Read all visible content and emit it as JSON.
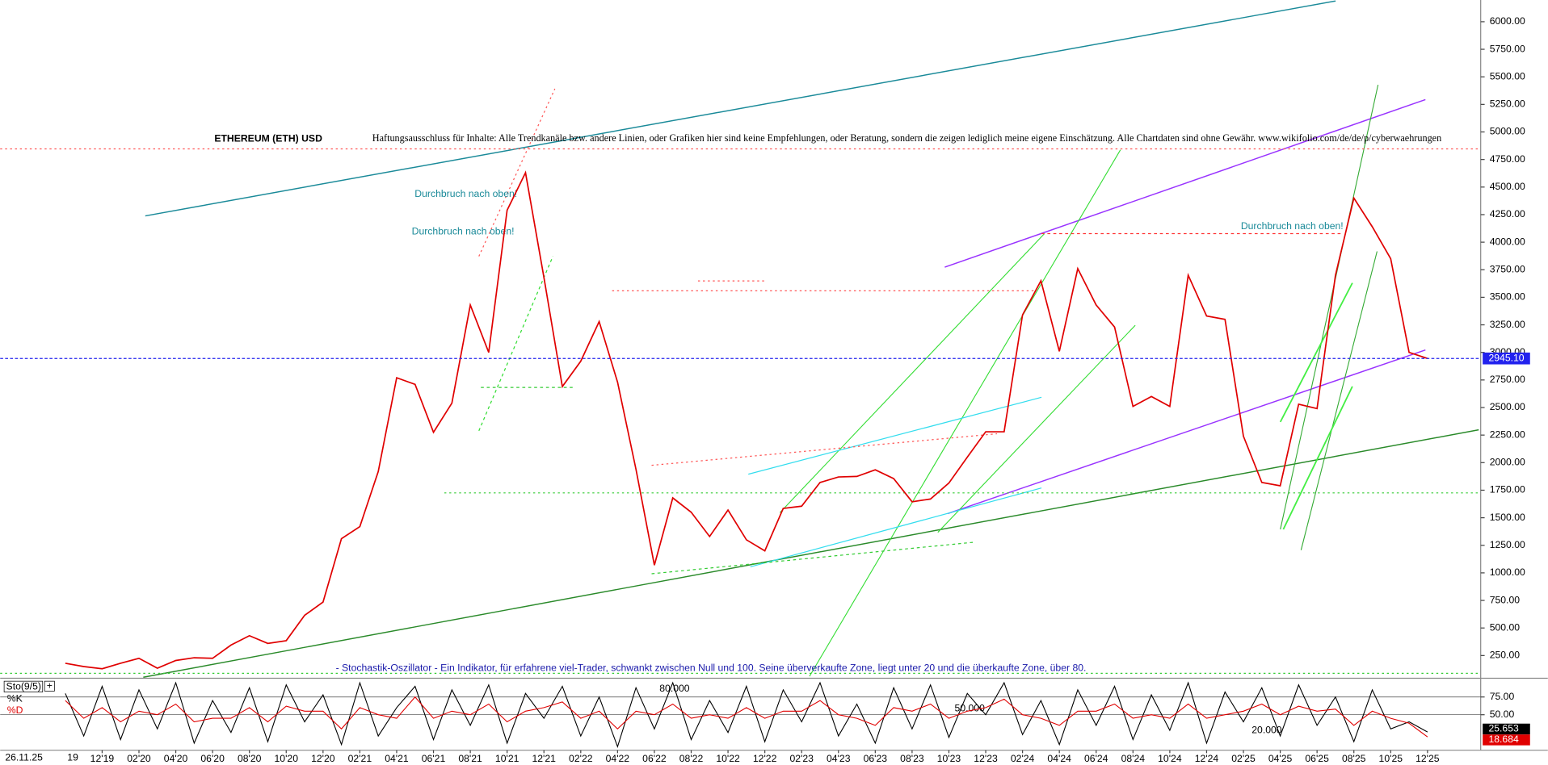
{
  "chart_data": [
    {
      "type": "line",
      "title": "ETHEREUM (ETH) USD",
      "subtitle": "Haftungsausschluss für Inhalte: Alle Trendkanäle bzw. andere Linien, oder Grafiken hier sind keine Empfehlungen, oder Beratung, sondern die zeigen lediglich meine eigene Einschätzung. Alle Chartdaten sind ohne Gewähr.  www.wikifolio.com/de/de/p/cyberwaehrungen",
      "annotations": [
        "Durchbruch nach oben!",
        "Durchbruch nach oben!",
        "Durchbruch nach oben!"
      ],
      "description": "- Stochastik-Oszillator - Ein Indikator, für erfahrene viel-Trader, schwankt zwischen Null und 100. Seine überverkaufte Zone, liegt unter 20 und die überkaufte Zone, über 80.",
      "x_extra_labels": [
        "26.11.25",
        "19"
      ],
      "x": [
        null,
        null,
        "12'19",
        null,
        "02'20",
        null,
        "04'20",
        null,
        "06'20",
        null,
        "08'20",
        null,
        "10'20",
        null,
        "12'20",
        null,
        "02'21",
        null,
        "04'21",
        null,
        "06'21",
        null,
        "08'21",
        null,
        "10'21",
        null,
        "12'21",
        null,
        "02'22",
        null,
        "04'22",
        null,
        "06'22",
        null,
        "08'22",
        null,
        "10'22",
        null,
        "12'22",
        null,
        "02'23",
        null,
        "04'23",
        null,
        "06'23",
        null,
        "08'23",
        null,
        "10'23",
        null,
        "12'23",
        null,
        "02'24",
        null,
        "04'24",
        null,
        "06'24",
        null,
        "08'24",
        null,
        "10'24",
        null,
        "12'24",
        null,
        "02'25",
        null,
        "04'25",
        null,
        "06'25",
        null,
        "08'25",
        null,
        "10'25",
        null,
        "12'25"
      ],
      "series": [
        {
          "color": "#e00000",
          "values": [
            180,
            150,
            130,
            180,
            225,
            135,
            205,
            230,
            225,
            345,
            430,
            360,
            385,
            615,
            735,
            1310,
            1420,
            1920,
            2770,
            2710,
            2275,
            2540,
            3430,
            3000,
            4290,
            4630,
            3680,
            2690,
            2920,
            3280,
            2730,
            1940,
            1070,
            1680,
            1550,
            1330,
            1570,
            1300,
            1200,
            1585,
            1605,
            1820,
            1870,
            1875,
            1935,
            1855,
            1645,
            1670,
            1815,
            2050,
            2280,
            2280,
            3340,
            3650,
            3010,
            3760,
            3430,
            3230,
            2510,
            2600,
            2510,
            3700,
            3330,
            3300,
            2240,
            1820,
            1790,
            2530,
            2490,
            3700,
            4400,
            4140,
            3850,
            3000,
            2945
          ]
        }
      ],
      "current_price": {
        "value": 2945.1,
        "label": "2945.10"
      },
      "ylim": [
        44,
        6197
      ],
      "yticks": [
        {
          "value": 250,
          "label": "250.00"
        },
        {
          "value": 500,
          "label": "500.00"
        },
        {
          "value": 750,
          "label": "750.00"
        },
        {
          "value": 1000,
          "label": "1000.00"
        },
        {
          "value": 1250,
          "label": "1250.00"
        },
        {
          "value": 1500,
          "label": "1500.00"
        },
        {
          "value": 1750,
          "label": "1750.00"
        },
        {
          "value": 2000,
          "label": "2000.00"
        },
        {
          "value": 2250,
          "label": "2250.00"
        },
        {
          "value": 2500,
          "label": "2500.00"
        },
        {
          "value": 2750,
          "label": "2750.00"
        },
        {
          "value": 3000,
          "label": "3000.00"
        },
        {
          "value": 3250,
          "label": "3250.00"
        },
        {
          "value": 3500,
          "label": "3500.00"
        },
        {
          "value": 3750,
          "label": "3750.00"
        },
        {
          "value": 4000,
          "label": "4000.00"
        },
        {
          "value": 4250,
          "label": "4250.00"
        },
        {
          "value": 4500,
          "label": "4500.00"
        },
        {
          "value": 4750,
          "label": "4750.00"
        },
        {
          "value": 5000,
          "label": "5000.00"
        },
        {
          "value": 5250,
          "label": "5250.00"
        },
        {
          "value": 5500,
          "label": "5500.00"
        },
        {
          "value": 5750,
          "label": "5750.00"
        },
        {
          "value": 6000,
          "label": "6000.00"
        }
      ]
    },
    {
      "type": "line",
      "title": "Sto(9/5)",
      "annotations": [
        "80.000",
        "50.000",
        "20.000"
      ],
      "series": [
        {
          "name": "%K",
          "color": "#000000",
          "values": [
            80,
            20,
            90,
            15,
            85,
            30,
            95,
            10,
            70,
            25,
            88,
            12,
            92,
            40,
            78,
            8,
            95,
            20,
            60,
            90,
            15,
            85,
            35,
            92,
            10,
            80,
            45,
            90,
            20,
            75,
            5,
            88,
            30,
            95,
            15,
            70,
            25,
            90,
            12,
            85,
            40,
            95,
            20,
            65,
            10,
            88,
            30,
            92,
            18,
            80,
            50,
            95,
            22,
            70,
            8,
            85,
            35,
            90,
            15,
            78,
            28,
            95,
            10,
            82,
            40,
            88,
            20,
            92,
            35,
            75,
            12,
            85,
            30,
            40,
            25.653
          ]
        },
        {
          "name": "%D",
          "color": "#e00000",
          "values": [
            70,
            45,
            60,
            40,
            55,
            50,
            65,
            40,
            45,
            45,
            60,
            40,
            62,
            55,
            55,
            30,
            60,
            50,
            45,
            75,
            45,
            55,
            50,
            65,
            40,
            55,
            60,
            68,
            45,
            55,
            30,
            55,
            50,
            65,
            45,
            50,
            45,
            60,
            45,
            55,
            55,
            70,
            50,
            45,
            35,
            60,
            55,
            65,
            45,
            55,
            60,
            72,
            50,
            45,
            35,
            55,
            55,
            65,
            45,
            50,
            45,
            65,
            45,
            50,
            55,
            65,
            50,
            62,
            55,
            58,
            35,
            55,
            45,
            38,
            18.684
          ]
        }
      ],
      "ylim": [
        0,
        100
      ],
      "yticks": [
        {
          "value": 50,
          "label": "50.00"
        },
        {
          "value": 75,
          "label": "75.00"
        }
      ]
    }
  ]
}
